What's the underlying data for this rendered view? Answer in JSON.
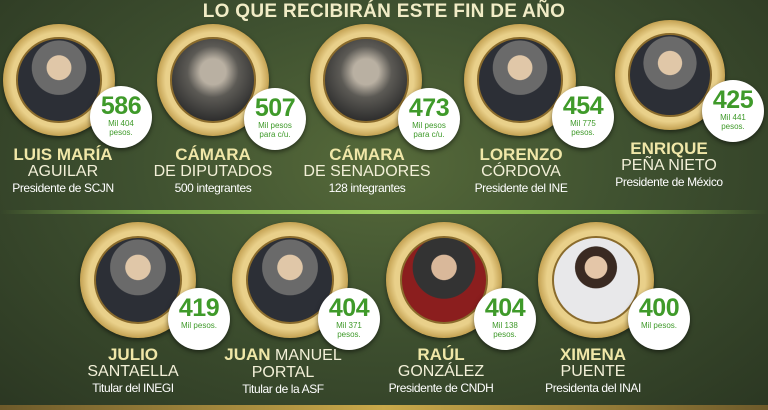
{
  "title": "LO QUE RECIBIRÁN ESTE FIN DE AÑO",
  "top_row": [
    {
      "amount": "586",
      "detail": "Mil 404 pesos.",
      "first": "LUIS MARÍA",
      "last": "AGUILAR",
      "role": "Presidente de SCJN"
    },
    {
      "amount": "507",
      "detail": "Mil pesos para c/u.",
      "first": "CÁMARA",
      "last": "DE DIPUTADOS",
      "role": "500 integrantes"
    },
    {
      "amount": "473",
      "detail": "Mil pesos para c/u.",
      "first": "CÁMARA",
      "last": "DE SENADORES",
      "role": "128 integrantes"
    },
    {
      "amount": "454",
      "detail": "Mil 775 pesos.",
      "first": "LORENZO",
      "last": "CÓRDOVA",
      "role": "Presidente del INE"
    },
    {
      "amount": "425",
      "detail": "Mil 441 pesos.",
      "first": "ENRIQUE",
      "last": "PEÑA NIETO",
      "role": "Presidente de México"
    }
  ],
  "bottom_row": [
    {
      "amount": "419",
      "detail": "Mil pesos.",
      "first": "JULIO",
      "last": "SANTAELLA",
      "role": "Titular del INEGI"
    },
    {
      "amount": "404",
      "detail": "Mil 371 pesos.",
      "first": "JUAN",
      "last": "MANUEL",
      "last2": "PORTAL",
      "role": "Titular de la ASF"
    },
    {
      "amount": "404",
      "detail": "Mil 138 pesos.",
      "first": "RAÚL",
      "last": "GONZÁLEZ",
      "role": "Presidente de CNDH"
    },
    {
      "amount": "400",
      "detail": "Mil pesos.",
      "first": "XIMENA",
      "last": "PUENTE",
      "role": "Presidenta del INAI"
    }
  ]
}
